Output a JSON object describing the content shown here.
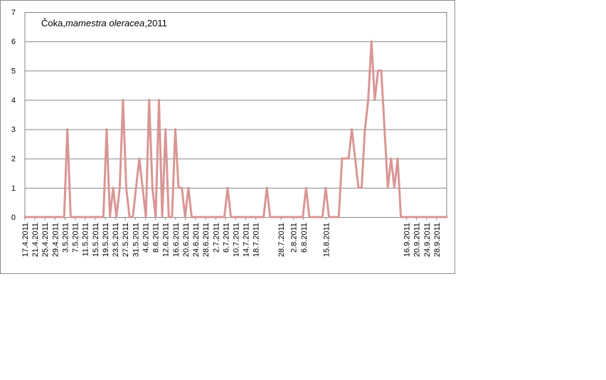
{
  "chart_data": {
    "type": "line",
    "title": {
      "prefix": "Čoka,",
      "species": "mamestra oleracea",
      "suffix": ",2011"
    },
    "xlabel": "",
    "ylabel": "",
    "ylim": [
      0,
      7
    ],
    "yticks": [
      0,
      1,
      2,
      3,
      4,
      5,
      6,
      7
    ],
    "grid": "horizontal",
    "legend": "none",
    "line_color": "#d99694",
    "x_start": "17.4.2011",
    "x_end": "2.10.2011",
    "x_tick_labels": [
      "17.4.2011",
      "21.4.2011",
      "25.4.2011",
      "29.4.2011",
      "3.5.2011",
      "7.5.2011",
      "11.5.2011",
      "15.5.2011",
      "19.5.2011",
      "23.5.2011",
      "27.5.2011",
      "31.5.2011",
      "4.6.2011",
      "8.6.2011",
      "12.6.2011",
      "16.6.2011",
      "20.6.2011",
      "24.6.2011",
      "28.6.2011",
      "2.7.2011",
      "6.7.2011",
      "10.7.2011",
      "14.7.2011",
      "18.7.2011",
      "28.7.2011",
      "2.8.2011",
      "6.8.2011",
      "15.8.2011",
      "16.9.2011",
      "20.9.2011",
      "24.9.2011",
      "28.9.2011"
    ],
    "series": [
      {
        "values": [
          0,
          0,
          0,
          0,
          0,
          0,
          0,
          0,
          0,
          0,
          0,
          0,
          0,
          3,
          0,
          0,
          0,
          0,
          0,
          0,
          0,
          0,
          0,
          0,
          0,
          3,
          0,
          1,
          0,
          1,
          4,
          1,
          0,
          0,
          1,
          2,
          1,
          0,
          4,
          1,
          0,
          4,
          0,
          3,
          0,
          0,
          3,
          1,
          1,
          0,
          1,
          0,
          0,
          0,
          0,
          0,
          0,
          0,
          0,
          0,
          0,
          0,
          1,
          0,
          0,
          0,
          0,
          0,
          0,
          0,
          0,
          0,
          0,
          0,
          1,
          0,
          0,
          0,
          0,
          0,
          0,
          0,
          0,
          0,
          0,
          0,
          1,
          0,
          0,
          0,
          0,
          0,
          1,
          0,
          0,
          0,
          0,
          2,
          2,
          2,
          3,
          2,
          1,
          1,
          3,
          4,
          6,
          4,
          5,
          5,
          3,
          1,
          2,
          1,
          2,
          0,
          0,
          0,
          0,
          0,
          0,
          0,
          0,
          0,
          0,
          0,
          0,
          0,
          0,
          0
        ]
      }
    ]
  }
}
